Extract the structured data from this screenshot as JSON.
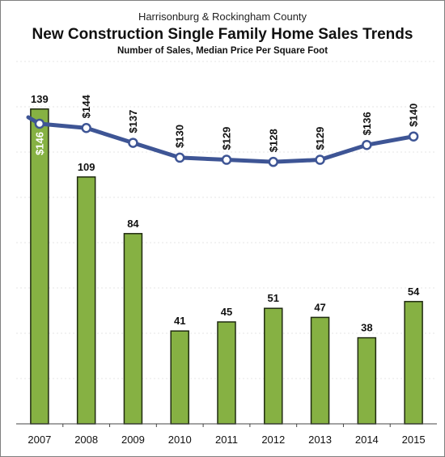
{
  "header": {
    "top_title": "Harrisonburg & Rockingham County",
    "main_title": "New Construction Single Family Home Sales Trends",
    "subtitle": "Number of Sales, Median Price Per Square Foot"
  },
  "colors": {
    "bar_fill": "#86b143",
    "line": "#3e5595"
  },
  "chart_data": {
    "type": "bar",
    "title": "New Construction Single Family Home Sales Trends",
    "subtitle": "Number of Sales, Median Price Per Square Foot",
    "categories": [
      "2007",
      "2008",
      "2009",
      "2010",
      "2011",
      "2012",
      "2013",
      "2014",
      "2015"
    ],
    "series": [
      {
        "type": "bar",
        "values": [
          139,
          109,
          84,
          41,
          45,
          51,
          47,
          38,
          54
        ],
        "labels": [
          "139",
          "109",
          "84",
          "41",
          "45",
          "51",
          "47",
          "38",
          "54"
        ],
        "ylim": [
          0,
          160
        ]
      },
      {
        "type": "line",
        "values": [
          146,
          144,
          137,
          130,
          129,
          128,
          129,
          136,
          140
        ],
        "labels": [
          "$146",
          "$144",
          "$137",
          "$130",
          "$129",
          "$128",
          "$129",
          "$136",
          "$140"
        ],
        "ylim": [
          100,
          160
        ]
      }
    ],
    "grid": true,
    "legend": "none"
  }
}
